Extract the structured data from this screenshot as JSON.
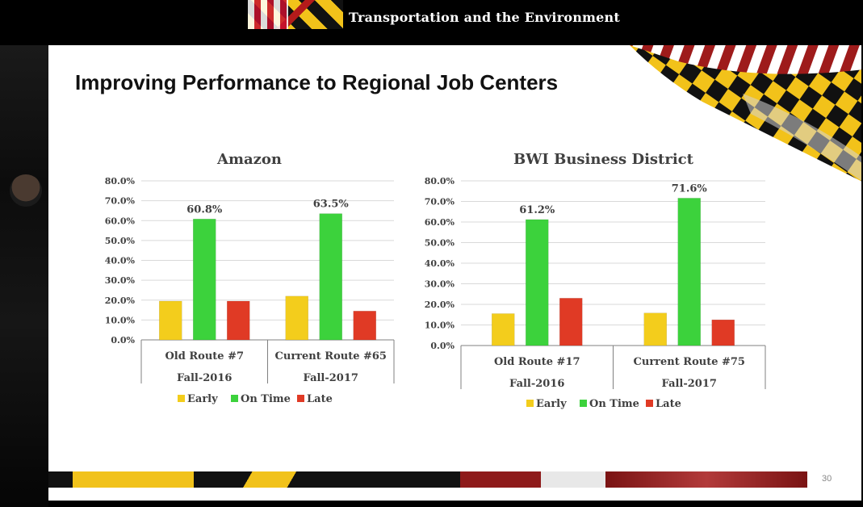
{
  "header": {
    "banner_title": "Transportation and the Environment"
  },
  "slide": {
    "title": "Improving Performance to Regional Job Centers",
    "page_number": "30"
  },
  "colors": {
    "early": "#f3cd1c",
    "on_time": "#3cd23c",
    "late": "#e03a25"
  },
  "legend": [
    "Early",
    "On Time",
    "Late"
  ],
  "chart_data": [
    {
      "type": "bar",
      "title": "Amazon",
      "categories": [
        [
          "Old Route #7",
          "Fall-2016"
        ],
        [
          "Current Route #65",
          "Fall-2017"
        ]
      ],
      "series": [
        {
          "name": "Early",
          "values": [
            19.5,
            22.0
          ]
        },
        {
          "name": "On Time",
          "values": [
            60.8,
            63.5
          ]
        },
        {
          "name": "Late",
          "values": [
            19.5,
            14.5
          ]
        }
      ],
      "data_labels": {
        "On Time": [
          "60.8%",
          "63.5%"
        ]
      },
      "ylim": [
        0,
        80
      ],
      "yticks": [
        "0.0%",
        "10.0%",
        "20.0%",
        "30.0%",
        "40.0%",
        "50.0%",
        "60.0%",
        "70.0%",
        "80.0%"
      ],
      "grid": true,
      "legend_position": "bottom"
    },
    {
      "type": "bar",
      "title": "BWI Business District",
      "categories": [
        [
          "Old Route #17",
          "Fall-2016"
        ],
        [
          "Current Route #75",
          "Fall-2017"
        ]
      ],
      "series": [
        {
          "name": "Early",
          "values": [
            15.5,
            15.8
          ]
        },
        {
          "name": "On Time",
          "values": [
            61.2,
            71.6
          ]
        },
        {
          "name": "Late",
          "values": [
            23.0,
            12.5
          ]
        }
      ],
      "data_labels": {
        "On Time": [
          "61.2%",
          "71.6%"
        ]
      },
      "ylim": [
        0,
        80
      ],
      "yticks": [
        "0.0%",
        "10.0%",
        "20.0%",
        "30.0%",
        "40.0%",
        "50.0%",
        "60.0%",
        "70.0%",
        "80.0%"
      ],
      "grid": true,
      "legend_position": "bottom"
    }
  ]
}
